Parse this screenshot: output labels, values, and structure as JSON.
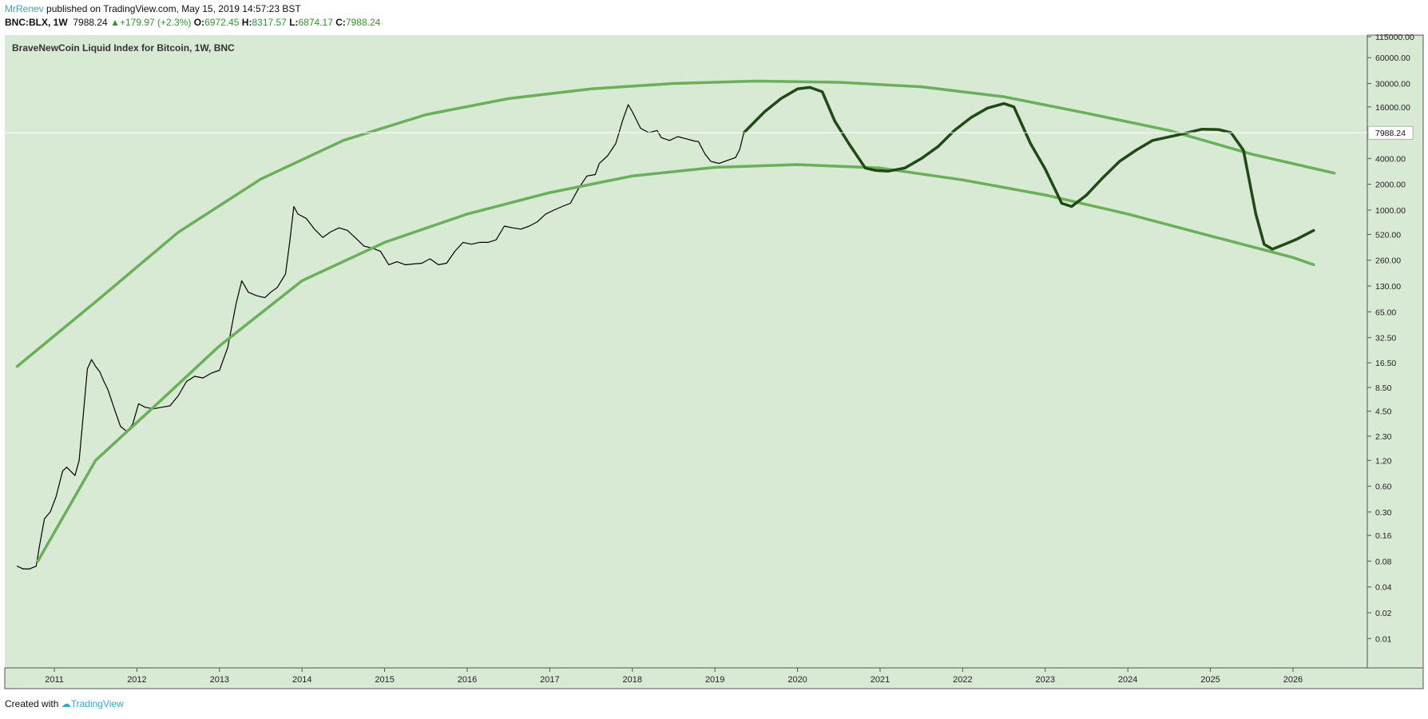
{
  "header": {
    "author": "MrRenev",
    "published_text": "published on TradingView.com, May 15, 2019 14:57:23 BST",
    "symbol": "BNC:BLX, 1W",
    "last_price": "7988.24",
    "change": "+179.97 (+2.3%)",
    "o_label": "O:",
    "o_value": "6972.45",
    "h_label": "H:",
    "h_value": "8317.57",
    "l_label": "L:",
    "l_value": "6874.17",
    "c_label": "C:",
    "c_value": "7988.24"
  },
  "colors": {
    "plot_background": "#d8e9d4",
    "arc": "#6aaf5a",
    "projection": "#1f4a14",
    "price": "#000000",
    "author": "#3aa3d6",
    "up": "#2a9b2a"
  },
  "footer": {
    "created_with": "Created with",
    "brand": "TradingView"
  },
  "chart_data": {
    "type": "line",
    "title": "BraveNewCoin Liquid Index for Bitcoin, 1W, BNC",
    "xlabel": "",
    "ylabel": "",
    "y_scale": "log",
    "grid": false,
    "legend": "none",
    "xlim": [
      2010.4,
      2026.9
    ],
    "ylim": [
      0.00455,
      110000
    ],
    "x_ticks": [
      "2011",
      "2012",
      "2013",
      "2014",
      "2015",
      "2016",
      "2017",
      "2018",
      "2019",
      "2020",
      "2021",
      "2022",
      "2023",
      "2024",
      "2025",
      "2026"
    ],
    "y_ticks": [
      {
        "v": 115000,
        "label": "115000.00"
      },
      {
        "v": 60000,
        "label": "60000.00"
      },
      {
        "v": 30000,
        "label": "30000.00"
      },
      {
        "v": 16000,
        "label": "16000.00"
      },
      {
        "v": 4000,
        "label": "4000.00"
      },
      {
        "v": 2000,
        "label": "2000.00"
      },
      {
        "v": 1000,
        "label": "1000.00"
      },
      {
        "v": 520,
        "label": "520.00"
      },
      {
        "v": 260,
        "label": "260.00"
      },
      {
        "v": 130,
        "label": "130.00"
      },
      {
        "v": 65,
        "label": "65.00"
      },
      {
        "v": 32.5,
        "label": "32.50"
      },
      {
        "v": 16.5,
        "label": "16.50"
      },
      {
        "v": 8.5,
        "label": "8.50"
      },
      {
        "v": 4.5,
        "label": "4.50"
      },
      {
        "v": 2.3,
        "label": "2.30"
      },
      {
        "v": 1.2,
        "label": "1.20"
      },
      {
        "v": 0.6,
        "label": "0.60"
      },
      {
        "v": 0.3,
        "label": "0.30"
      },
      {
        "v": 0.16,
        "label": "0.16"
      },
      {
        "v": 0.08,
        "label": "0.08"
      },
      {
        "v": 0.04,
        "label": "0.04"
      },
      {
        "v": 0.02,
        "label": "0.02"
      },
      {
        "v": 0.01,
        "label": "0.01"
      }
    ],
    "last_price_label": "7988.24",
    "last_price_value": 7988.24,
    "series": [
      {
        "role": "price",
        "points": [
          [
            2010.55,
            0.07
          ],
          [
            2010.62,
            0.065
          ],
          [
            2010.7,
            0.065
          ],
          [
            2010.78,
            0.07
          ],
          [
            2010.82,
            0.12
          ],
          [
            2010.88,
            0.25
          ],
          [
            2010.95,
            0.3
          ],
          [
            2011.02,
            0.45
          ],
          [
            2011.1,
            0.9
          ],
          [
            2011.15,
            1.0
          ],
          [
            2011.25,
            0.8
          ],
          [
            2011.3,
            1.2
          ],
          [
            2011.35,
            4.0
          ],
          [
            2011.4,
            14
          ],
          [
            2011.45,
            18
          ],
          [
            2011.5,
            15
          ],
          [
            2011.55,
            13
          ],
          [
            2011.6,
            10
          ],
          [
            2011.65,
            8
          ],
          [
            2011.72,
            5
          ],
          [
            2011.8,
            3
          ],
          [
            2011.88,
            2.6
          ],
          [
            2011.95,
            3.2
          ],
          [
            2012.02,
            5.5
          ],
          [
            2012.1,
            5
          ],
          [
            2012.2,
            4.8
          ],
          [
            2012.3,
            5
          ],
          [
            2012.4,
            5.2
          ],
          [
            2012.5,
            6.8
          ],
          [
            2012.6,
            10
          ],
          [
            2012.7,
            11.5
          ],
          [
            2012.8,
            11
          ],
          [
            2012.9,
            12.5
          ],
          [
            2013.0,
            13.5
          ],
          [
            2013.1,
            25
          ],
          [
            2013.2,
            80
          ],
          [
            2013.27,
            150
          ],
          [
            2013.35,
            110
          ],
          [
            2013.45,
            100
          ],
          [
            2013.55,
            95
          ],
          [
            2013.62,
            110
          ],
          [
            2013.7,
            125
          ],
          [
            2013.8,
            180
          ],
          [
            2013.85,
            420
          ],
          [
            2013.9,
            1100
          ],
          [
            2013.95,
            900
          ],
          [
            2014.05,
            800
          ],
          [
            2014.15,
            600
          ],
          [
            2014.25,
            480
          ],
          [
            2014.35,
            560
          ],
          [
            2014.45,
            620
          ],
          [
            2014.55,
            580
          ],
          [
            2014.65,
            470
          ],
          [
            2014.75,
            380
          ],
          [
            2014.85,
            360
          ],
          [
            2014.95,
            330
          ],
          [
            2015.05,
            230
          ],
          [
            2015.15,
            250
          ],
          [
            2015.25,
            230
          ],
          [
            2015.35,
            235
          ],
          [
            2015.45,
            240
          ],
          [
            2015.55,
            270
          ],
          [
            2015.65,
            230
          ],
          [
            2015.75,
            240
          ],
          [
            2015.85,
            330
          ],
          [
            2015.95,
            420
          ],
          [
            2016.05,
            400
          ],
          [
            2016.15,
            420
          ],
          [
            2016.25,
            420
          ],
          [
            2016.35,
            450
          ],
          [
            2016.45,
            650
          ],
          [
            2016.55,
            620
          ],
          [
            2016.65,
            600
          ],
          [
            2016.75,
            650
          ],
          [
            2016.85,
            730
          ],
          [
            2016.95,
            900
          ],
          [
            2017.05,
            1000
          ],
          [
            2017.15,
            1100
          ],
          [
            2017.25,
            1200
          ],
          [
            2017.35,
            1800
          ],
          [
            2017.45,
            2500
          ],
          [
            2017.55,
            2600
          ],
          [
            2017.6,
            3500
          ],
          [
            2017.7,
            4300
          ],
          [
            2017.8,
            6000
          ],
          [
            2017.88,
            11000
          ],
          [
            2017.95,
            17000
          ],
          [
            2018.0,
            14000
          ],
          [
            2018.1,
            9000
          ],
          [
            2018.2,
            8000
          ],
          [
            2018.3,
            8500
          ],
          [
            2018.35,
            7000
          ],
          [
            2018.45,
            6500
          ],
          [
            2018.55,
            7200
          ],
          [
            2018.65,
            6800
          ],
          [
            2018.75,
            6400
          ],
          [
            2018.8,
            6300
          ],
          [
            2018.88,
            4500
          ],
          [
            2018.95,
            3700
          ],
          [
            2019.05,
            3500
          ],
          [
            2019.15,
            3800
          ],
          [
            2019.25,
            4100
          ],
          [
            2019.3,
            5100
          ],
          [
            2019.35,
            7988
          ]
        ]
      },
      {
        "role": "arc-upper",
        "points": [
          [
            2010.55,
            15
          ],
          [
            2011.5,
            85
          ],
          [
            2012.5,
            550
          ],
          [
            2013.5,
            2300
          ],
          [
            2014.5,
            6500
          ],
          [
            2015.5,
            13000
          ],
          [
            2016.5,
            20000
          ],
          [
            2017.5,
            26000
          ],
          [
            2018.5,
            30000
          ],
          [
            2019.5,
            32000
          ],
          [
            2020.5,
            31000
          ],
          [
            2021.5,
            27500
          ],
          [
            2022.5,
            21000
          ],
          [
            2023.5,
            13500
          ],
          [
            2024.5,
            8500
          ],
          [
            2025.5,
            4500
          ],
          [
            2026.5,
            2700
          ]
        ]
      },
      {
        "role": "arc-lower",
        "points": [
          [
            2010.8,
            0.08
          ],
          [
            2011.5,
            1.2
          ],
          [
            2012.2,
            5
          ],
          [
            2013.0,
            26
          ],
          [
            2014.0,
            150
          ],
          [
            2015.0,
            420
          ],
          [
            2016.0,
            900
          ],
          [
            2017.0,
            1600
          ],
          [
            2018.0,
            2500
          ],
          [
            2019.0,
            3150
          ],
          [
            2020.0,
            3400
          ],
          [
            2021.0,
            3100
          ],
          [
            2022.0,
            2250
          ],
          [
            2023.0,
            1500
          ],
          [
            2024.0,
            900
          ],
          [
            2025.0,
            500
          ],
          [
            2026.0,
            280
          ],
          [
            2026.25,
            230
          ]
        ]
      },
      {
        "role": "projection",
        "points": [
          [
            2019.35,
            8000
          ],
          [
            2019.6,
            14000
          ],
          [
            2019.8,
            20000
          ],
          [
            2020.0,
            26000
          ],
          [
            2020.15,
            27000
          ],
          [
            2020.3,
            24000
          ],
          [
            2020.45,
            11000
          ],
          [
            2020.62,
            6000
          ],
          [
            2020.82,
            3100
          ],
          [
            2020.95,
            2900
          ],
          [
            2021.1,
            2850
          ],
          [
            2021.3,
            3100
          ],
          [
            2021.5,
            4000
          ],
          [
            2021.7,
            5500
          ],
          [
            2021.9,
            8500
          ],
          [
            2022.1,
            12000
          ],
          [
            2022.3,
            15500
          ],
          [
            2022.5,
            17500
          ],
          [
            2022.62,
            16000
          ],
          [
            2022.82,
            6000
          ],
          [
            2023.0,
            3000
          ],
          [
            2023.2,
            1200
          ],
          [
            2023.32,
            1100
          ],
          [
            2023.5,
            1500
          ],
          [
            2023.7,
            2400
          ],
          [
            2023.9,
            3700
          ],
          [
            2024.1,
            5000
          ],
          [
            2024.3,
            6500
          ],
          [
            2024.6,
            7500
          ],
          [
            2024.9,
            8800
          ],
          [
            2025.1,
            8700
          ],
          [
            2025.25,
            8000
          ],
          [
            2025.4,
            5000
          ],
          [
            2025.55,
            900
          ],
          [
            2025.65,
            400
          ],
          [
            2025.75,
            350
          ],
          [
            2025.9,
            400
          ],
          [
            2026.05,
            460
          ],
          [
            2026.25,
            580
          ]
        ]
      }
    ]
  }
}
